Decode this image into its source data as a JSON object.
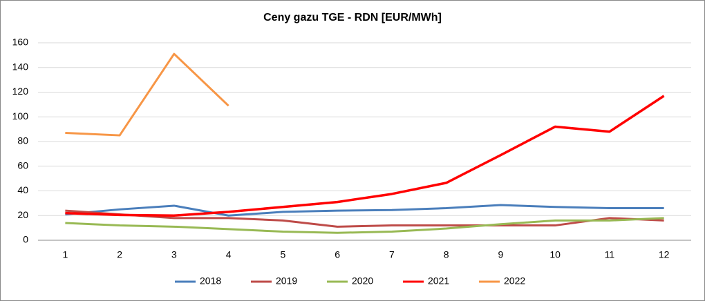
{
  "chart_data": {
    "type": "line",
    "title": "Ceny gazu TGE - RDN [EUR/MWh]",
    "categories": [
      "1",
      "2",
      "3",
      "4",
      "5",
      "6",
      "7",
      "8",
      "9",
      "10",
      "11",
      "12"
    ],
    "series": [
      {
        "name": "2018",
        "color": "#4a7ebb",
        "values": [
          21,
          25,
          28,
          20,
          23,
          24,
          24.5,
          26,
          28.5,
          27,
          26,
          26
        ]
      },
      {
        "name": "2019",
        "color": "#be4b48",
        "values": [
          24,
          21,
          18,
          18,
          16,
          11,
          12,
          12,
          12,
          12,
          18,
          16
        ]
      },
      {
        "name": "2020",
        "color": "#98b954",
        "values": [
          14,
          12,
          11,
          9,
          7,
          6,
          7,
          9.5,
          13,
          16,
          16,
          18
        ]
      },
      {
        "name": "2021",
        "color": "#ff0000",
        "values": [
          22,
          20.5,
          20,
          23,
          27,
          31,
          37.5,
          46.5,
          69,
          92,
          88,
          117
        ]
      },
      {
        "name": "2022",
        "color": "#f79646",
        "values": [
          87,
          85,
          151,
          109,
          null,
          null,
          null,
          null,
          null,
          null,
          null,
          null
        ]
      }
    ],
    "ylim": [
      0,
      160
    ],
    "yticks": [
      0,
      20,
      40,
      60,
      80,
      100,
      120,
      140,
      160
    ],
    "grid": true,
    "legend": "bottom"
  }
}
